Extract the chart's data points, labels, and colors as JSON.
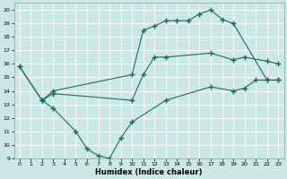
{
  "title": "",
  "xlabel": "Humidex (Indice chaleur)",
  "ylabel": "",
  "bg_color": "#cce8e4",
  "grid_color": "#ffffff",
  "line_color": "#1e6b5e",
  "xlim": [
    -0.5,
    23.5
  ],
  "ylim": [
    9,
    20.5
  ],
  "xticks": [
    0,
    1,
    2,
    3,
    4,
    5,
    6,
    7,
    8,
    9,
    10,
    11,
    12,
    13,
    14,
    15,
    16,
    17,
    18,
    19,
    20,
    21,
    22,
    23
  ],
  "yticks": [
    9,
    10,
    11,
    12,
    13,
    14,
    15,
    16,
    17,
    18,
    19,
    20
  ],
  "line1": {
    "x": [
      0,
      2,
      3,
      10,
      11,
      12,
      13,
      14,
      15,
      16,
      17,
      18,
      19,
      22,
      23
    ],
    "y": [
      15.8,
      13.3,
      14.0,
      15.2,
      18.5,
      18.8,
      19.2,
      19.2,
      19.2,
      19.7,
      20.0,
      19.3,
      19.0,
      14.8,
      14.8
    ]
  },
  "line2": {
    "x": [
      0,
      2,
      3,
      5,
      6,
      7,
      8,
      9,
      10,
      13,
      17,
      19,
      20,
      21,
      22,
      23
    ],
    "y": [
      15.8,
      13.3,
      12.7,
      11.0,
      9.7,
      9.2,
      9.0,
      10.5,
      11.7,
      13.3,
      14.3,
      14.0,
      14.2,
      14.8,
      14.8,
      14.8
    ]
  },
  "line3": {
    "x": [
      2,
      3,
      10,
      11,
      12,
      13,
      17,
      19,
      20,
      22,
      23
    ],
    "y": [
      13.3,
      13.8,
      13.3,
      15.2,
      16.5,
      16.5,
      16.8,
      16.3,
      16.5,
      16.2,
      16.0
    ]
  }
}
